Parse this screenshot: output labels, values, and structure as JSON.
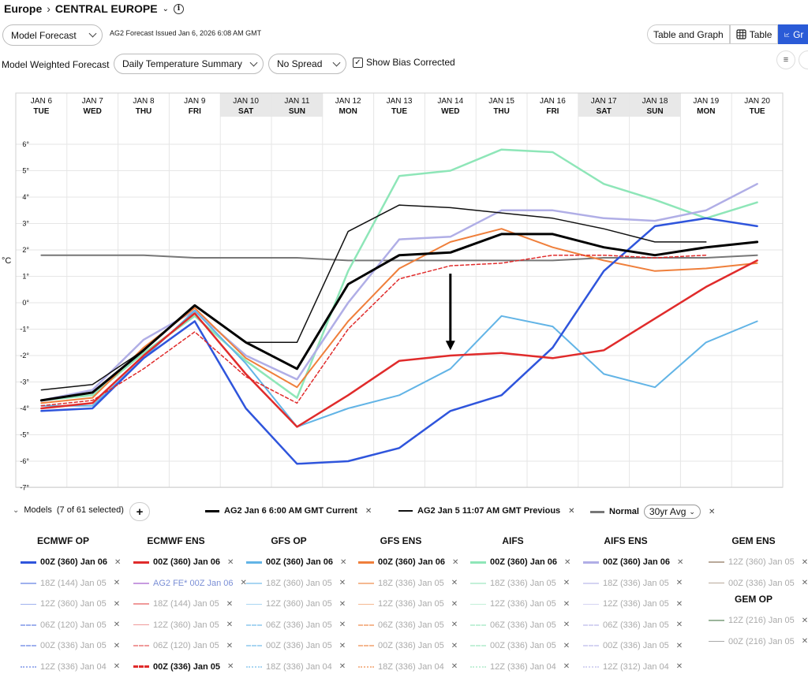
{
  "header": {
    "region": "Europe",
    "location": "CENTRAL EUROPE",
    "forecast_select": "Model Forecast",
    "issued": "AG2 Forecast Issued Jan 6, 2026 6:08 AM GMT",
    "weighted_label": "Model Weighted Forecast",
    "summary_select": "Daily Temperature Summary",
    "spread_select": "No Spread",
    "bias_label": "Show Bias Corrected",
    "view_buttons": [
      "Table and Graph",
      "Table",
      "Gr"
    ]
  },
  "chart_data": {
    "type": "line",
    "ylabel": "°C",
    "ylim": [
      -7,
      6
    ],
    "yticks": [
      "6°",
      "5°",
      "4°",
      "3°",
      "2°",
      "1°",
      "0°",
      "-1°",
      "-2°",
      "-3°",
      "-4°",
      "-5°",
      "-6°",
      "-7°"
    ],
    "categories": [
      {
        "date": "JAN 6",
        "day": "TUE"
      },
      {
        "date": "JAN 7",
        "day": "WED"
      },
      {
        "date": "JAN 8",
        "day": "THU"
      },
      {
        "date": "JAN 9",
        "day": "FRI"
      },
      {
        "date": "JAN 10",
        "day": "SAT"
      },
      {
        "date": "JAN 11",
        "day": "SUN"
      },
      {
        "date": "JAN 12",
        "day": "MON"
      },
      {
        "date": "JAN 13",
        "day": "TUE"
      },
      {
        "date": "JAN 14",
        "day": "WED"
      },
      {
        "date": "JAN 15",
        "day": "THU"
      },
      {
        "date": "JAN 16",
        "day": "FRI"
      },
      {
        "date": "JAN 17",
        "day": "SAT"
      },
      {
        "date": "JAN 18",
        "day": "SUN"
      },
      {
        "date": "JAN 19",
        "day": "MON"
      },
      {
        "date": "JAN 20",
        "day": "TUE"
      }
    ],
    "weekend": [
      4,
      5,
      11,
      12
    ],
    "series": [
      {
        "name": "Normal",
        "color": "#777777",
        "width": 2,
        "dash": "",
        "values": [
          1.8,
          1.8,
          1.8,
          1.7,
          1.7,
          1.7,
          1.6,
          1.6,
          1.6,
          1.6,
          1.6,
          1.7,
          1.7,
          1.7,
          1.8
        ]
      },
      {
        "name": "AIFS",
        "color": "#8ee6b8",
        "width": 2.5,
        "dash": "",
        "values": [
          -3.7,
          -3.5,
          -1.9,
          -0.5,
          -2.2,
          -3.6,
          1.2,
          4.8,
          5.0,
          5.8,
          5.7,
          4.5,
          3.9,
          3.2,
          3.8
        ]
      },
      {
        "name": "AIFS ENS",
        "color": "#b0aee6",
        "width": 2.5,
        "dash": "",
        "values": [
          -3.7,
          -3.3,
          -1.4,
          -0.3,
          -2.0,
          -2.9,
          0.0,
          2.4,
          2.5,
          3.5,
          3.5,
          3.2,
          3.1,
          3.5,
          4.5
        ]
      },
      {
        "name": "GFS ENS",
        "color": "#ef7f3b",
        "width": 2,
        "dash": "",
        "values": [
          -3.8,
          -3.6,
          -1.7,
          -0.2,
          -2.1,
          -3.2,
          -0.7,
          1.3,
          2.3,
          2.8,
          2.1,
          1.6,
          1.2,
          1.3,
          1.5
        ]
      },
      {
        "name": "GFS OP",
        "color": "#62b4e6",
        "width": 2,
        "dash": "",
        "values": [
          -3.9,
          -3.9,
          -2.1,
          -0.3,
          -2.3,
          -4.7,
          -4.0,
          -3.5,
          -2.5,
          -0.5,
          -0.9,
          -2.7,
          -3.2,
          -1.5,
          -0.7
        ]
      },
      {
        "name": "ECMWF OP",
        "color": "#2f55dc",
        "width": 2.5,
        "dash": "",
        "values": [
          -4.1,
          -4.0,
          -2.1,
          -0.7,
          -4.0,
          -6.1,
          -6.0,
          -5.5,
          -4.1,
          -3.5,
          -1.7,
          1.2,
          2.9,
          3.2,
          2.9
        ]
      },
      {
        "name": "ECMWF ENS",
        "color": "#e02b2b",
        "width": 2.5,
        "dash": "",
        "values": [
          -4.0,
          -3.8,
          -2.0,
          -0.4,
          -2.7,
          -4.7,
          -3.5,
          -2.2,
          -2.0,
          -1.9,
          -2.1,
          -1.8,
          -0.6,
          0.6,
          1.6
        ]
      },
      {
        "name": "ECMWF ENS 00Z (336) Jan 05",
        "color": "#e02b2b",
        "width": 1.5,
        "dash": "4,3",
        "values": [
          -3.9,
          -3.7,
          -2.5,
          -1.1,
          -2.8,
          -3.8,
          -1.0,
          0.9,
          1.4,
          1.5,
          1.8,
          1.8,
          1.7,
          1.8,
          null
        ]
      },
      {
        "name": "AG2 Jan 5 11:07 AM GMT Previous",
        "color": "#111111",
        "width": 1.5,
        "dash": "",
        "values": [
          -3.3,
          -3.1,
          -1.8,
          -0.1,
          -1.5,
          -1.5,
          2.7,
          3.7,
          3.6,
          3.4,
          3.2,
          2.8,
          2.3,
          2.3,
          null
        ]
      },
      {
        "name": "AG2 Jan 6 6:00 AM GMT Current",
        "color": "#000000",
        "width": 3,
        "dash": "",
        "values": [
          -3.7,
          -3.4,
          -1.8,
          -0.1,
          -1.5,
          -2.5,
          0.7,
          1.8,
          1.9,
          2.6,
          2.6,
          2.1,
          1.8,
          2.1,
          2.3
        ]
      }
    ],
    "annotations": [
      {
        "type": "arrow",
        "x": 8,
        "from": 1.1,
        "to": -1.8
      }
    ]
  },
  "models": {
    "label": "Models",
    "selected": "(7 of 61 selected)",
    "legend": [
      {
        "label": "AG2  Jan 6 6:00 AM GMT Current",
        "color": "#000000",
        "bold": true
      },
      {
        "label": "AG2  Jan 5 11:07 AM GMT Previous",
        "color": "#111111",
        "bold": false
      },
      {
        "label": "Normal",
        "color": "#777777",
        "bold": true
      }
    ],
    "normal_select": "30yr Avg",
    "columns": [
      {
        "title": "ECMWF OP",
        "items": [
          {
            "label": "00Z (360) Jan 06",
            "on": true,
            "color": "#2f55dc",
            "style": "solid"
          },
          {
            "label": "18Z (144) Jan 05",
            "on": false,
            "color": "#9fb1ee",
            "style": "solid"
          },
          {
            "label": "12Z (360) Jan 05",
            "on": false,
            "color": "#9fb1ee",
            "style": "thin"
          },
          {
            "label": "06Z (120) Jan 05",
            "on": false,
            "color": "#9fb1ee",
            "style": "dash"
          },
          {
            "label": "00Z (336) Jan 05",
            "on": false,
            "color": "#9fb1ee",
            "style": "dash2"
          },
          {
            "label": "12Z (336) Jan 04",
            "on": false,
            "color": "#9fb1ee",
            "style": "dot"
          }
        ]
      },
      {
        "title": "ECMWF ENS",
        "items": [
          {
            "label": "00Z (360) Jan 06",
            "on": true,
            "color": "#e02b2b",
            "style": "solid"
          },
          {
            "label": "AG2 FE* 00Z Jan 06",
            "on": false,
            "color": "#c79be0",
            "style": "solid"
          },
          {
            "label": "18Z (144) Jan 05",
            "on": false,
            "color": "#f09a9a",
            "style": "solid"
          },
          {
            "label": "12Z (360) Jan 05",
            "on": false,
            "color": "#f09a9a",
            "style": "thin"
          },
          {
            "label": "06Z (120) Jan 05",
            "on": false,
            "color": "#f09a9a",
            "style": "dash"
          },
          {
            "label": "00Z (336) Jan 05",
            "on": true,
            "color": "#e02b2b",
            "style": "dash2"
          }
        ]
      },
      {
        "title": "GFS OP",
        "items": [
          {
            "label": "00Z (360) Jan 06",
            "on": true,
            "color": "#62b4e6",
            "style": "solid"
          },
          {
            "label": "18Z (360) Jan 05",
            "on": false,
            "color": "#a9d6f2",
            "style": "solid"
          },
          {
            "label": "12Z (360) Jan 05",
            "on": false,
            "color": "#a9d6f2",
            "style": "thin"
          },
          {
            "label": "06Z (336) Jan 05",
            "on": false,
            "color": "#a9d6f2",
            "style": "dash"
          },
          {
            "label": "00Z (336) Jan 05",
            "on": false,
            "color": "#a9d6f2",
            "style": "dash2"
          },
          {
            "label": "18Z (336) Jan 04",
            "on": false,
            "color": "#a9d6f2",
            "style": "dot"
          }
        ]
      },
      {
        "title": "GFS ENS",
        "items": [
          {
            "label": "00Z (360) Jan 06",
            "on": true,
            "color": "#ef7f3b",
            "style": "solid"
          },
          {
            "label": "18Z (336) Jan 05",
            "on": false,
            "color": "#f5b891",
            "style": "solid"
          },
          {
            "label": "12Z (336) Jan 05",
            "on": false,
            "color": "#f5b891",
            "style": "thin"
          },
          {
            "label": "06Z (336) Jan 05",
            "on": false,
            "color": "#f5b891",
            "style": "dash"
          },
          {
            "label": "00Z (336) Jan 05",
            "on": false,
            "color": "#f5b891",
            "style": "dash2"
          },
          {
            "label": "18Z (336) Jan 04",
            "on": false,
            "color": "#f5b891",
            "style": "dot"
          }
        ]
      },
      {
        "title": "AIFS",
        "items": [
          {
            "label": "00Z (360) Jan 06",
            "on": true,
            "color": "#8ee6b8",
            "style": "solid"
          },
          {
            "label": "18Z (336) Jan 05",
            "on": false,
            "color": "#c3f0d8",
            "style": "solid"
          },
          {
            "label": "12Z (336) Jan 05",
            "on": false,
            "color": "#c3f0d8",
            "style": "thin"
          },
          {
            "label": "06Z (336) Jan 05",
            "on": false,
            "color": "#c3f0d8",
            "style": "dash"
          },
          {
            "label": "00Z (336) Jan 05",
            "on": false,
            "color": "#c3f0d8",
            "style": "dash2"
          },
          {
            "label": "12Z (336) Jan 04",
            "on": false,
            "color": "#c3f0d8",
            "style": "dot"
          }
        ]
      },
      {
        "title": "AIFS ENS",
        "items": [
          {
            "label": "00Z (360) Jan 06",
            "on": true,
            "color": "#b0aee6",
            "style": "solid"
          },
          {
            "label": "18Z (336) Jan 05",
            "on": false,
            "color": "#d5d4f2",
            "style": "solid"
          },
          {
            "label": "12Z (336) Jan 05",
            "on": false,
            "color": "#d5d4f2",
            "style": "thin"
          },
          {
            "label": "06Z (336) Jan 05",
            "on": false,
            "color": "#d5d4f2",
            "style": "dash"
          },
          {
            "label": "00Z (336) Jan 05",
            "on": false,
            "color": "#d5d4f2",
            "style": "dash2"
          },
          {
            "label": "12Z (312) Jan 04",
            "on": false,
            "color": "#d5d4f2",
            "style": "dot"
          }
        ]
      }
    ],
    "gem_ens": {
      "title": "GEM ENS",
      "items": [
        {
          "label": "12Z (360) Jan 05",
          "on": false,
          "color": "#b9a99a",
          "style": "solid"
        },
        {
          "label": "00Z (336) Jan 05",
          "on": false,
          "color": "#b9a99a",
          "style": "thin"
        }
      ]
    },
    "gem_op": {
      "title": "GEM OP",
      "items": [
        {
          "label": "12Z (216) Jan 05",
          "on": false,
          "color": "#9bb59b",
          "style": "solid"
        },
        {
          "label": "00Z (216) Jan 05",
          "on": false,
          "color": "#aaaaaa",
          "style": "thin"
        }
      ]
    }
  }
}
